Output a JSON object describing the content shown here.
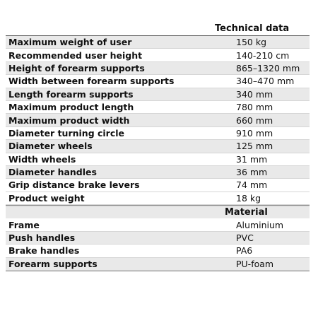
{
  "headers": {
    "technical": "Technical data",
    "material": "Material"
  },
  "technical_rows": [
    {
      "label": "Maximum weight of user",
      "value": "150 kg"
    },
    {
      "label": "Recommended user height",
      "value": "140-210 cm"
    },
    {
      "label": "Height of forearm supports",
      "value": "865–1320 mm"
    },
    {
      "label": "Width between forearm supports",
      "value": "340–470 mm"
    },
    {
      "label": "Length forearm supports",
      "value": "340 mm"
    },
    {
      "label": "Maximum product length",
      "value": "780 mm"
    },
    {
      "label": "Maximum product width",
      "value": "660 mm"
    },
    {
      "label": "Diameter turning circle",
      "value": "910 mm"
    },
    {
      "label": "Diameter wheels",
      "value": "125 mm"
    },
    {
      "label": "Width wheels",
      "value": "31 mm"
    },
    {
      "label": "Diameter handles",
      "value": "36 mm"
    },
    {
      "label": "Grip distance brake levers",
      "value": "74 mm"
    },
    {
      "label": "Product weight",
      "value": "18 kg"
    }
  ],
  "material_rows": [
    {
      "label": "Frame",
      "value": "Aluminium"
    },
    {
      "label": "Push handles",
      "value": "PVC"
    },
    {
      "label": "Brake handles",
      "value": "PA6"
    },
    {
      "label": "Forearm supports",
      "value": "PU-foam"
    }
  ]
}
